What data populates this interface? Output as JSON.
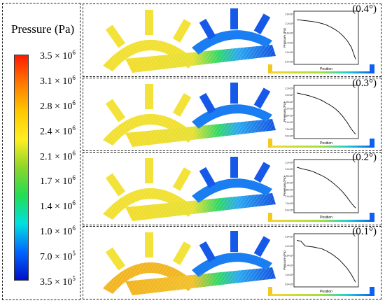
{
  "legend": {
    "title": "Pressure (Pa)",
    "ticks": [
      {
        "mantissa": "3.5 × 10",
        "exp": "6"
      },
      {
        "mantissa": "3.1 × 10",
        "exp": "6"
      },
      {
        "mantissa": "2.8 × 10",
        "exp": "6"
      },
      {
        "mantissa": "2.4 × 10",
        "exp": "6"
      },
      {
        "mantissa": "2.1 × 10",
        "exp": "6"
      },
      {
        "mantissa": "1.7 × 10",
        "exp": "6"
      },
      {
        "mantissa": "1.4 × 10",
        "exp": "6"
      },
      {
        "mantissa": "1.0 × 10",
        "exp": "6"
      },
      {
        "mantissa": "7.0 × 10",
        "exp": "5"
      },
      {
        "mantissa": "3.5 × 10",
        "exp": "5"
      }
    ],
    "colors": [
      "#ff1a00",
      "#ff7a00",
      "#ffc800",
      "#ffee22",
      "#8ad62a",
      "#22dd55",
      "#00e0e0",
      "#0066ff",
      "#0010c8"
    ]
  },
  "panels": [
    {
      "angle": "(0.4°)",
      "inset_ylabel": "Pressure (Pa)",
      "inset_xlabel": "Position",
      "yticks": [
        "2.6×10⁶",
        "2.2×10⁶",
        "1.8×10⁶",
        "1.4×10⁶",
        "1.0×10⁶",
        "6.0×10⁵"
      ],
      "curve": [
        0.12,
        0.13,
        0.14,
        0.15,
        0.16,
        0.18,
        0.2,
        0.23,
        0.27,
        0.32,
        0.38,
        0.46,
        0.56,
        0.7,
        0.95
      ]
    },
    {
      "angle": "(0.3°)",
      "inset_ylabel": "Pressure (Pa)",
      "inset_xlabel": "Position",
      "yticks": [
        "2.2×10⁶",
        "2.0×10⁶",
        "1.75×10⁶",
        "1.5×10⁶",
        "1.25×10⁶",
        "1.0×10⁶",
        "7.5×10⁵",
        "5.0×10⁵"
      ],
      "curve": [
        0.1,
        0.12,
        0.14,
        0.16,
        0.19,
        0.22,
        0.26,
        0.31,
        0.36,
        0.42,
        0.5,
        0.6,
        0.72,
        0.86,
        0.97
      ]
    },
    {
      "angle": "(0.2°)",
      "inset_ylabel": "Pressure (Pa)",
      "inset_xlabel": "Position",
      "yticks": [
        "2.2×10⁶",
        "2.0×10⁶",
        "1.75×10⁶",
        "1.5×10⁶",
        "1.25×10⁶",
        "1.0×10⁶",
        "7.5×10⁵",
        "5.0×10⁵"
      ],
      "curve": [
        0.1,
        0.13,
        0.15,
        0.17,
        0.2,
        0.24,
        0.28,
        0.33,
        0.39,
        0.46,
        0.54,
        0.63,
        0.74,
        0.86,
        0.96
      ]
    },
    {
      "angle": "(0.1°)",
      "inset_ylabel": "Pressure (Pa)",
      "inset_xlabel": "Position",
      "yticks": [
        "2.6×10⁶",
        "2.2×10⁶",
        "1.8×10⁶",
        "1.4×10⁶",
        "1.0×10⁶",
        "6.0×10⁵"
      ],
      "curve": [
        0.08,
        0.1,
        0.2,
        0.21,
        0.22,
        0.24,
        0.26,
        0.3,
        0.35,
        0.41,
        0.48,
        0.57,
        0.67,
        0.8,
        0.96
      ]
    }
  ]
}
